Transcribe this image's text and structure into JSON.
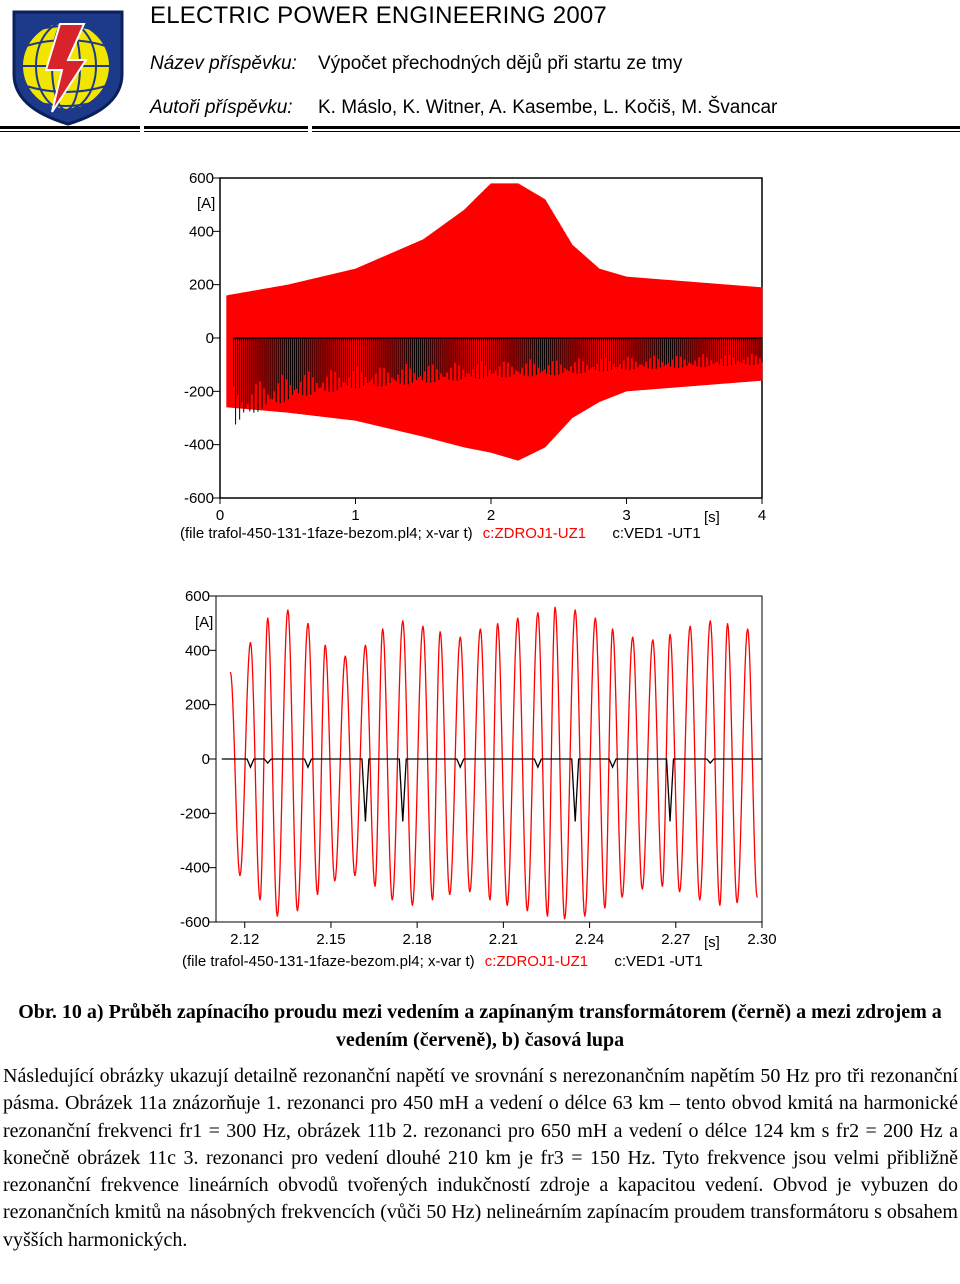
{
  "header": {
    "journal_title": "ELECTRIC POWER ENGINEERING 2007",
    "paper_label": "Název příspěvku:",
    "paper_title": "Výpočet přechodných dějů při startu ze tmy",
    "authors_label": "Autoři příspěvku:",
    "authors": "K. Máslo, K. Witner, A. Kasembe, L. Kočiš, M. Švancar",
    "logo_icon": "globe-lightning-shield-logo",
    "colors": {
      "logo_blue": "#1d3a8a",
      "logo_yellow": "#f2e500",
      "logo_red": "#d8232a"
    }
  },
  "charts": {
    "chart_a": {
      "y_unit": "[A]",
      "x_unit": "[s]",
      "y_ticks": [
        "600",
        "400",
        "200",
        "0",
        "-200",
        "-400",
        "-600"
      ],
      "x_ticks": [
        "0",
        "1",
        "2",
        "3",
        "4"
      ],
      "footer_prefix": "(file trafol-450-131-1faze-bezom.pl4; x-var t)",
      "series_red": "c:ZDROJ1-UZ1",
      "series_black": "c:VED1 -UT1"
    },
    "chart_b": {
      "y_unit": "[A]",
      "x_unit": "[s]",
      "y_ticks": [
        "600",
        "400",
        "200",
        "0",
        "-200",
        "-400",
        "-600"
      ],
      "x_ticks": [
        "2.12",
        "2.15",
        "2.18",
        "2.21",
        "2.24",
        "2.27",
        "2.30"
      ],
      "footer_prefix": "(file trafol-450-131-1faze-bezom.pl4; x-var t)",
      "series_red": "c:ZDROJ1-UZ1",
      "series_black": "c:VED1 -UT1"
    }
  },
  "chart_data": [
    {
      "type": "line",
      "title": "",
      "xlabel": "[s]",
      "ylabel": "[A]",
      "xlim": [
        0,
        4
      ],
      "ylim": [
        -600,
        600
      ],
      "x_ticks": [
        0,
        1,
        2,
        3,
        4
      ],
      "y_ticks": [
        -600,
        -400,
        -200,
        0,
        200,
        400,
        600
      ],
      "grid": false,
      "legend": "bottom",
      "series": [
        {
          "name": "c:ZDROJ1-UZ1",
          "color": "#ff0000",
          "envelope_t": [
            0.05,
            0.5,
            1.0,
            1.5,
            1.8,
            2.0,
            2.2,
            2.4,
            2.6,
            2.8,
            3.0,
            3.5,
            4.0
          ],
          "envelope_max": [
            160,
            200,
            260,
            370,
            480,
            580,
            580,
            520,
            350,
            260,
            230,
            210,
            190
          ],
          "envelope_min": [
            -260,
            -280,
            -310,
            -370,
            -410,
            -430,
            -460,
            -410,
            -300,
            -240,
            -200,
            -180,
            -160
          ]
        },
        {
          "name": "c:VED1 -UT1",
          "color": "#000000",
          "envelope_t": [
            0.1,
            0.3,
            0.6,
            1.0,
            1.5,
            2.0,
            2.5,
            3.0,
            3.5,
            4.0
          ],
          "envelope_max": [
            0,
            0,
            0,
            0,
            0,
            0,
            0,
            0,
            0,
            0
          ],
          "envelope_min": [
            -330,
            -270,
            -220,
            -190,
            -170,
            -150,
            -140,
            -120,
            -110,
            -100
          ]
        }
      ]
    },
    {
      "type": "line",
      "title": "",
      "xlabel": "[s]",
      "ylabel": "[A]",
      "xlim": [
        2.11,
        2.3
      ],
      "ylim": [
        -600,
        600
      ],
      "x_ticks": [
        2.12,
        2.15,
        2.18,
        2.21,
        2.24,
        2.27,
        2.3
      ],
      "y_ticks": [
        -600,
        -400,
        -200,
        0,
        200,
        400,
        600
      ],
      "grid": false,
      "legend": "bottom",
      "series": [
        {
          "name": "c:ZDROJ1-UZ1",
          "color": "#ff0000",
          "frequency_hz": 150,
          "peaks_t": [
            2.115,
            2.122,
            2.128,
            2.135,
            2.142,
            2.148,
            2.155,
            2.162,
            2.168,
            2.175,
            2.182,
            2.188,
            2.195,
            2.202,
            2.208,
            2.215,
            2.222,
            2.228,
            2.235,
            2.242,
            2.248,
            2.255,
            2.262,
            2.268,
            2.275,
            2.282,
            2.288,
            2.295
          ],
          "peaks_max": [
            320,
            430,
            520,
            550,
            500,
            420,
            380,
            420,
            480,
            510,
            490,
            470,
            450,
            480,
            500,
            520,
            540,
            560,
            550,
            520,
            480,
            450,
            440,
            460,
            490,
            510,
            500,
            480
          ],
          "peaks_min": [
            -430,
            -520,
            -580,
            -560,
            -500,
            -450,
            -430,
            -470,
            -520,
            -540,
            -520,
            -500,
            -490,
            -520,
            -540,
            -560,
            -580,
            -590,
            -580,
            -550,
            -510,
            -480,
            -470,
            -490,
            -520,
            -540,
            -530,
            -510
          ]
        },
        {
          "name": "c:VED1 -UT1",
          "color": "#000000",
          "baseline": 0,
          "dips_t": [
            2.122,
            2.128,
            2.142,
            2.162,
            2.175,
            2.195,
            2.222,
            2.235,
            2.248,
            2.268,
            2.282
          ],
          "dips_min": [
            -30,
            -15,
            -30,
            -230,
            -230,
            -30,
            -30,
            -230,
            -30,
            -230,
            -15
          ]
        }
      ]
    }
  ],
  "caption": {
    "text": "Obr. 10 a) Průběh zapínacího proudu mezi vedením a zapínaným transformátorem (černě) a mezi zdrojem a vedením (červeně), b) časová lupa"
  },
  "body": {
    "text": "Následující obrázky ukazují detailně rezonanční napětí ve srovnání s nerezonančním napětím 50 Hz pro tři rezonanční pásma. Obrázek 11a znázorňuje 1. rezonanci pro 450 mH a vedení o délce 63 km – tento obvod kmitá na harmonické rezonanční frekvenci fr1 = 300 Hz, obrázek 11b 2. rezonanci pro 650 mH a vedení o délce 124 km s fr2 = 200 Hz a konečně obrázek 11c 3. rezonanci pro vedení dlouhé 210 km je fr3 = 150 Hz. Tyto frekvence jsou velmi přibližně rezonanční frekvence lineárních obvodů tvořených indukčností zdroje a kapacitou vedení. Obvod je vybuzen do rezonančních kmitů na násobných frekvencích (vůči 50 Hz) nelineárním zapínacím proudem transformátoru s obsahem vyšších harmonických."
  }
}
